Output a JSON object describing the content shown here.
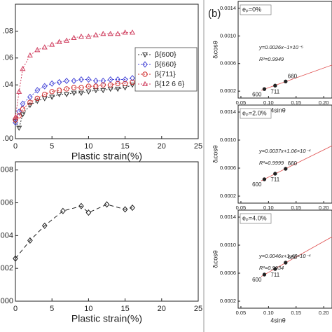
{
  "panel_label": "(b)",
  "chart_data": [
    {
      "type": "line",
      "x_label": "Plastic strain(%)",
      "dash": "2,2",
      "x": [
        0,
        0.5,
        1,
        2,
        3,
        4,
        5,
        6,
        7,
        8,
        9,
        10,
        11,
        12,
        13,
        14,
        15,
        16
      ],
      "xlim": [
        0,
        25
      ],
      "xticks": [
        0,
        5,
        10,
        15,
        20,
        25
      ],
      "ylim": [
        0,
        0.1
      ],
      "yticks": [
        {
          "value": 0.08,
          "label": ".08"
        },
        {
          "value": 0.06,
          "label": ".06"
        },
        {
          "value": 0.04,
          "label": ".04"
        },
        {
          "value": 0.0,
          "label": ".00"
        }
      ],
      "legend": "right",
      "series": [
        {
          "name": "β{600}",
          "color": "#333333",
          "marker": "triangle-down",
          "values": [
            0.013,
            0.008,
            0.018,
            0.025,
            0.028,
            0.03,
            0.031,
            0.033,
            0.033,
            0.034,
            0.034,
            0.035,
            0.036,
            0.036,
            0.037,
            0.037,
            0.038,
            0.04
          ]
        },
        {
          "name": "β{660}",
          "color": "#4a4ad8",
          "marker": "diamond",
          "values": [
            0.012,
            0.02,
            0.026,
            0.031,
            0.036,
            0.039,
            0.041,
            0.042,
            0.043,
            0.043,
            0.044,
            0.044,
            0.043,
            0.043,
            0.044,
            0.044,
            0.044,
            0.045
          ]
        },
        {
          "name": "β{711}",
          "color": "#d03030",
          "marker": "circle",
          "values": [
            0.014,
            0.017,
            0.022,
            0.027,
            0.03,
            0.033,
            0.035,
            0.036,
            0.037,
            0.038,
            0.038,
            0.039,
            0.039,
            0.04,
            0.04,
            0.041,
            0.041,
            0.042
          ]
        },
        {
          "name": "β{12 6 6}",
          "color": "#d04060",
          "marker": "triangle-up",
          "values": [
            0.016,
            0.035,
            0.052,
            0.062,
            0.066,
            0.068,
            0.07,
            0.072,
            0.073,
            0.075,
            0.076,
            0.076,
            0.077,
            0.078,
            0.078,
            0.078,
            0.079,
            0.079
          ]
        }
      ]
    },
    {
      "type": "line",
      "x_label": "Plastic strain(%)",
      "dash": "6,4",
      "x": [
        0,
        2,
        4,
        6.5,
        9,
        10,
        12.5,
        15,
        16
      ],
      "xlim": [
        0,
        25
      ],
      "xticks": [
        0,
        5,
        10,
        15,
        20,
        25
      ],
      "ylim": [
        0,
        0.0085
      ],
      "yticks": [
        {
          "value": 0.008,
          "label": ".008"
        },
        {
          "value": 0.006,
          "label": ".006"
        },
        {
          "value": 0.004,
          "label": ".004"
        },
        {
          "value": 0.002,
          "label": ".002"
        },
        {
          "value": 0.0,
          "label": ".000"
        }
      ],
      "series": [
        {
          "color": "#222222",
          "marker": "diamond",
          "values": [
            0.0026,
            0.0037,
            0.0046,
            0.0055,
            0.0058,
            0.0054,
            0.0059,
            0.0056,
            0.0057
          ]
        }
      ]
    },
    {
      "type": "scatter",
      "label": "eₚ=0%",
      "equation": "y=0.0026x−1×10⁻⁵",
      "r2": "R²=0.9949",
      "x_label": "4sinθ",
      "y_label": "δᵢcosθ",
      "x": [
        0.0925,
        0.112,
        0.131
      ],
      "values": [
        0.00023,
        0.00028,
        0.00034
      ],
      "point_labels": [
        "600",
        "711",
        "660"
      ],
      "color": "#222222",
      "fit_color": "#e05050",
      "xlim": [
        0.045,
        0.215
      ],
      "xticks": [
        {
          "value": 0.05,
          "label": "0.05"
        },
        {
          "value": 0.1,
          "label": "0.10"
        },
        {
          "value": 0.15,
          "label": "0.15"
        },
        {
          "value": 0.2,
          "label": "0.20"
        }
      ],
      "ylim": [
        0.0001,
        0.0015
      ],
      "yticks": [
        0.0002,
        0.0006,
        {
          "value": 0.001,
          "label": "0.0010"
        },
        0.0014
      ]
    },
    {
      "type": "scatter",
      "label": "eₚ=2.0%",
      "equation": "y=0.0037x+1.06×10⁻⁴",
      "r2": "R²=0.9999",
      "y_label": "δᵢcosθ",
      "x": [
        0.0925,
        0.112,
        0.131
      ],
      "values": [
        0.00044,
        0.00052,
        0.00059
      ],
      "point_labels": [
        "600",
        "711",
        "660"
      ],
      "color": "#222222",
      "fit_color": "#e05050",
      "xlim": [
        0.045,
        0.215
      ],
      "xticks": [
        {
          "value": 0.05,
          "label": "0.05"
        },
        {
          "value": 0.1,
          "label": "0.10"
        },
        {
          "value": 0.15,
          "label": "0.15"
        },
        {
          "value": 0.2,
          "label": "0.20"
        }
      ],
      "ylim": [
        0.0001,
        0.0015
      ],
      "yticks": [
        0.0002,
        0.0006,
        {
          "value": 0.001,
          "label": "0.0010"
        },
        0.0014
      ]
    },
    {
      "type": "scatter",
      "label": "eₚ=4.0%",
      "equation": "y=0.0046x+1.47×10⁻⁴",
      "r2": "R²=0.9934",
      "x_label": "4sinθ",
      "y_label": "δᵢcosθ",
      "x": [
        0.0925,
        0.112,
        0.131
      ],
      "values": [
        0.00058,
        0.00066,
        0.00075
      ],
      "point_labels": [
        "600",
        "711",
        "660"
      ],
      "color": "#222222",
      "fit_color": "#e05050",
      "xlim": [
        0.045,
        0.215
      ],
      "xticks": [
        {
          "value": 0.05,
          "label": "0.05"
        },
        {
          "value": 0.1,
          "label": "0.10"
        },
        {
          "value": 0.15,
          "label": "0.15"
        },
        {
          "value": 0.2,
          "label": "0.20"
        }
      ],
      "ylim": [
        0.0001,
        0.0015
      ],
      "yticks": [
        0.0002,
        0.0006,
        {
          "value": 0.001,
          "label": "0.0010"
        },
        0.0014
      ]
    }
  ]
}
